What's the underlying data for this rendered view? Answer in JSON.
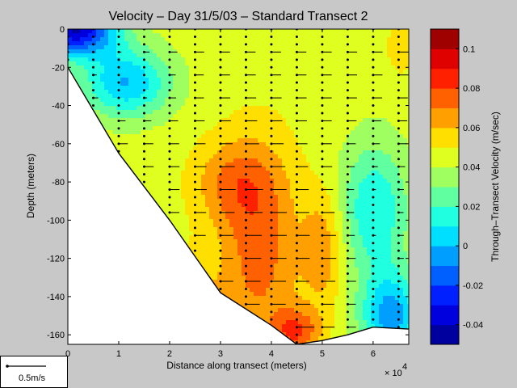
{
  "chart_data": {
    "type": "heatmap",
    "title": "Velocity – Day 31/5/03 – Standard Transect 2",
    "xlabel": "Distance along transect (meters)",
    "ylabel": "Depth (meters)",
    "x_multiplier": "× 10",
    "x_multiplier_exp": "4",
    "xlim": [
      0,
      67000
    ],
    "ylim": [
      -165,
      0
    ],
    "xticks": [
      "0",
      "1",
      "2",
      "3",
      "4",
      "5",
      "6"
    ],
    "yticks": [
      "0",
      "-20",
      "-40",
      "-60",
      "-80",
      "-100",
      "-120",
      "-140",
      "-160"
    ],
    "colorbar": {
      "label": "Through–Transect Velocity (m/sec)",
      "range": [
        -0.05,
        0.11
      ],
      "ticks": [
        "0.1",
        "0.08",
        "0.06",
        "0.04",
        "0.02",
        "0",
        "-0.02",
        "-0.04"
      ]
    },
    "bottom_profile": [
      [
        0,
        -20
      ],
      [
        10000,
        -65
      ],
      [
        20000,
        -100
      ],
      [
        30000,
        -138
      ],
      [
        40000,
        -155
      ],
      [
        45000,
        -165
      ],
      [
        50000,
        -163
      ],
      [
        55000,
        -160
      ],
      [
        60000,
        -156
      ],
      [
        67000,
        -157
      ]
    ],
    "profile_stations_x": [
      0,
      5000,
      10000,
      15000,
      20000,
      25000,
      30000,
      35000,
      40000,
      45000,
      50000,
      55000,
      60000,
      65000
    ],
    "scale_arrow_label": "0.5m/s"
  }
}
